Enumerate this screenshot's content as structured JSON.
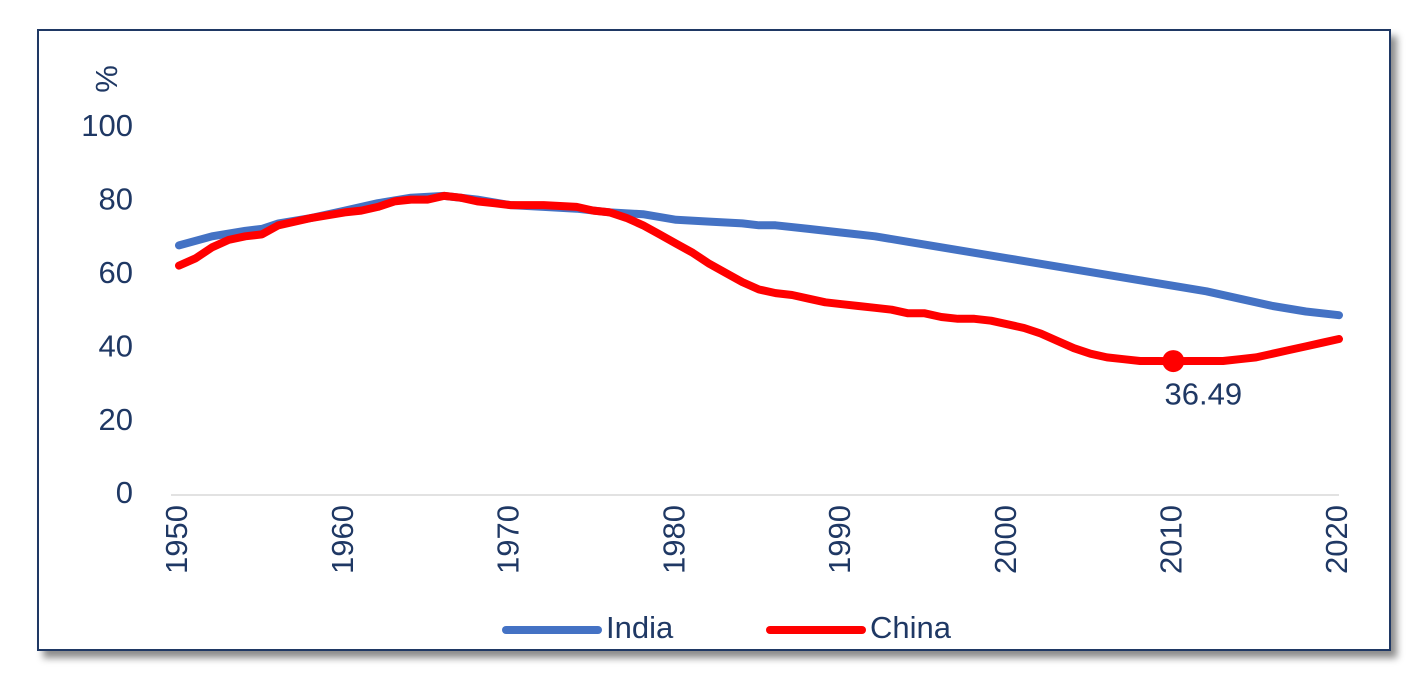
{
  "chart_data": {
    "type": "line",
    "ylabel": "%",
    "ylim": [
      0,
      100
    ],
    "yticks": [
      "0",
      "20",
      "40",
      "60",
      "80",
      "100"
    ],
    "xlim": [
      1950,
      2020
    ],
    "xticks": [
      "1950",
      "1960",
      "1970",
      "1980",
      "1990",
      "2000",
      "2010",
      "2020"
    ],
    "grid": false,
    "legend_position": "bottom",
    "series": [
      {
        "name": "India",
        "color": "#4472c4",
        "x": [
          1950,
          1952,
          1954,
          1955,
          1956,
          1958,
          1960,
          1962,
          1964,
          1966,
          1968,
          1970,
          1972,
          1974,
          1976,
          1978,
          1980,
          1982,
          1984,
          1985,
          1986,
          1988,
          1990,
          1992,
          1994,
          1996,
          1998,
          2000,
          2002,
          2004,
          2006,
          2008,
          2010,
          2012,
          2014,
          2016,
          2018,
          2020
        ],
        "values": [
          68,
          70.5,
          72,
          72.5,
          74,
          75.5,
          77.5,
          79.5,
          81,
          81.5,
          80.5,
          79,
          78.5,
          78,
          77,
          76.5,
          75,
          74.5,
          74,
          73.5,
          73.5,
          72.5,
          71.5,
          70.5,
          69,
          67.5,
          66,
          64.5,
          63,
          61.5,
          60,
          58.5,
          57,
          55.5,
          53.5,
          51.5,
          50,
          49
        ]
      },
      {
        "name": "China",
        "color": "#ff0000",
        "x": [
          1950,
          1951,
          1952,
          1953,
          1954,
          1955,
          1956,
          1957,
          1958,
          1960,
          1961,
          1962,
          1963,
          1964,
          1965,
          1966,
          1967,
          1968,
          1969,
          1970,
          1972,
          1974,
          1975,
          1976,
          1977,
          1978,
          1979,
          1980,
          1981,
          1982,
          1983,
          1984,
          1985,
          1986,
          1987,
          1988,
          1989,
          1990,
          1991,
          1992,
          1993,
          1994,
          1995,
          1996,
          1997,
          1998,
          1999,
          2000,
          2001,
          2002,
          2003,
          2004,
          2005,
          2006,
          2007,
          2008,
          2009,
          2010,
          2011,
          2012,
          2013,
          2014,
          2015,
          2016,
          2017,
          2018,
          2019,
          2020
        ],
        "values": [
          62.5,
          64.5,
          67.5,
          69.5,
          70.5,
          71,
          73.5,
          74.5,
          75.5,
          77,
          77.5,
          78.5,
          80,
          80.5,
          80.5,
          81.5,
          81,
          80,
          79.5,
          79,
          79,
          78.5,
          77.5,
          77,
          75.5,
          73.5,
          71,
          68.5,
          66,
          63,
          60.5,
          58,
          56,
          55,
          54.5,
          53.5,
          52.5,
          52,
          51.5,
          51,
          50.5,
          49.5,
          49.5,
          48.5,
          48,
          48,
          47.5,
          46.5,
          45.5,
          44,
          42,
          40,
          38.5,
          37.5,
          37,
          36.5,
          36.5,
          36.49,
          36.5,
          36.5,
          36.5,
          37,
          37.5,
          38.5,
          39.5,
          40.5,
          41.5,
          42.5
        ]
      }
    ],
    "annotations": [
      {
        "series": "China",
        "x": 2010,
        "y": 36.49,
        "label": "36.49"
      }
    ]
  }
}
